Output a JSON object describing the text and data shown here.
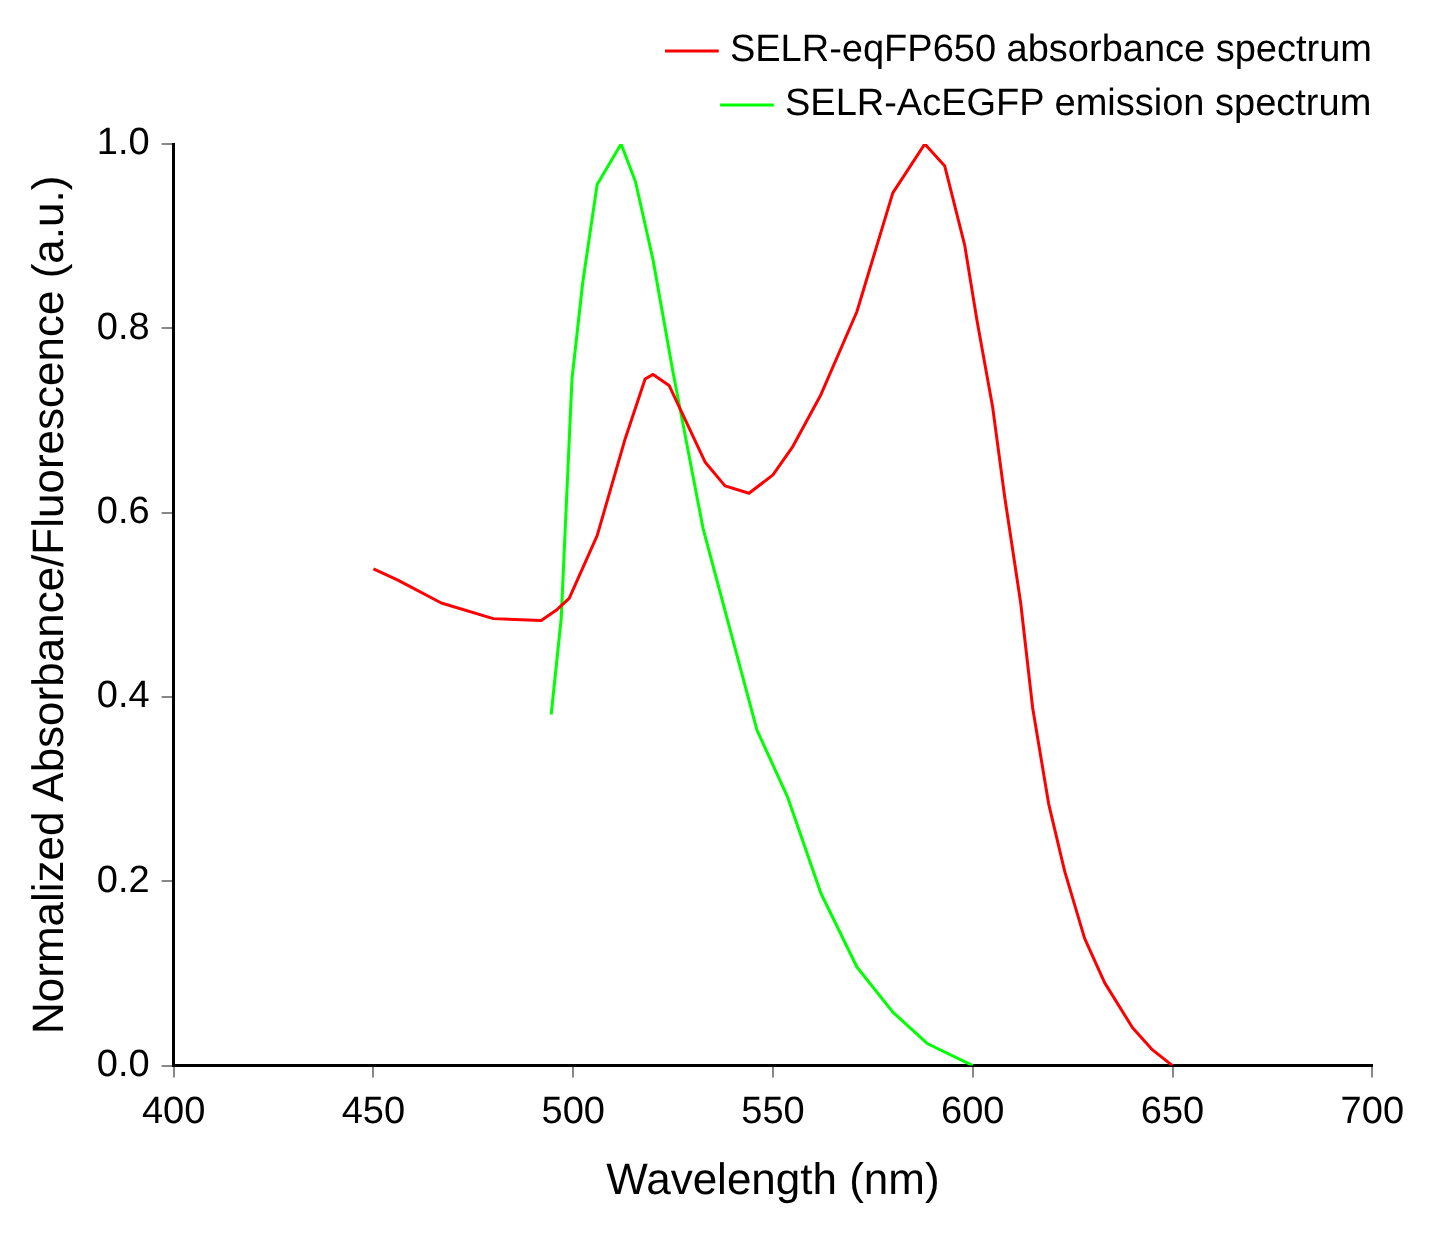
{
  "chart_data": {
    "type": "line",
    "xlabel": "Wavelength (nm)",
    "ylabel": "Normalized Absorbance/Fluorescence (a.u.)",
    "xlim": [
      400,
      700
    ],
    "xticks": [
      400,
      450,
      500,
      550,
      600,
      650,
      700
    ],
    "ylim": [
      0,
      1
    ],
    "yticks": [
      {
        "value": 0,
        "label": "0.0"
      },
      0.2,
      0.4,
      0.6,
      0.8,
      {
        "value": 1,
        "label": "1.0"
      }
    ],
    "grid": false,
    "legend": "top right",
    "marker": "none",
    "line_style": "solid",
    "series": [
      {
        "name": "SELR-eqFP650 absorbance spectrum",
        "color": "#ff0000",
        "x": [
          450,
          456,
          467,
          480,
          492,
          496,
          499,
          506,
          513,
          518,
          520,
          524,
          533,
          538,
          544,
          550,
          555,
          562,
          571,
          580,
          588,
          593,
          598,
          601,
          605,
          608,
          612,
          615,
          619,
          623,
          628,
          633,
          640,
          645,
          650
        ],
        "values": [
          0.539,
          0.527,
          0.502,
          0.485,
          0.483,
          0.495,
          0.507,
          0.575,
          0.68,
          0.745,
          0.75,
          0.738,
          0.655,
          0.629,
          0.621,
          0.641,
          0.672,
          0.728,
          0.818,
          0.947,
          1.0,
          0.976,
          0.89,
          0.81,
          0.714,
          0.617,
          0.502,
          0.388,
          0.284,
          0.211,
          0.138,
          0.09,
          0.041,
          0.017,
          0.0
        ]
      },
      {
        "name": "SELR-AcEGFP emission spectrum",
        "color": "#00ff00",
        "x": [
          494.5,
          497,
          499.7,
          502.4,
          506,
          512,
          515.6,
          520,
          525,
          532.5,
          539.4,
          546,
          553.7,
          562,
          571,
          580,
          588.6,
          600
        ],
        "values": [
          0.381,
          0.485,
          0.745,
          0.85,
          0.956,
          1.0,
          0.959,
          0.874,
          0.752,
          0.583,
          0.471,
          0.364,
          0.291,
          0.187,
          0.107,
          0.058,
          0.024,
          0.0
        ]
      }
    ]
  }
}
